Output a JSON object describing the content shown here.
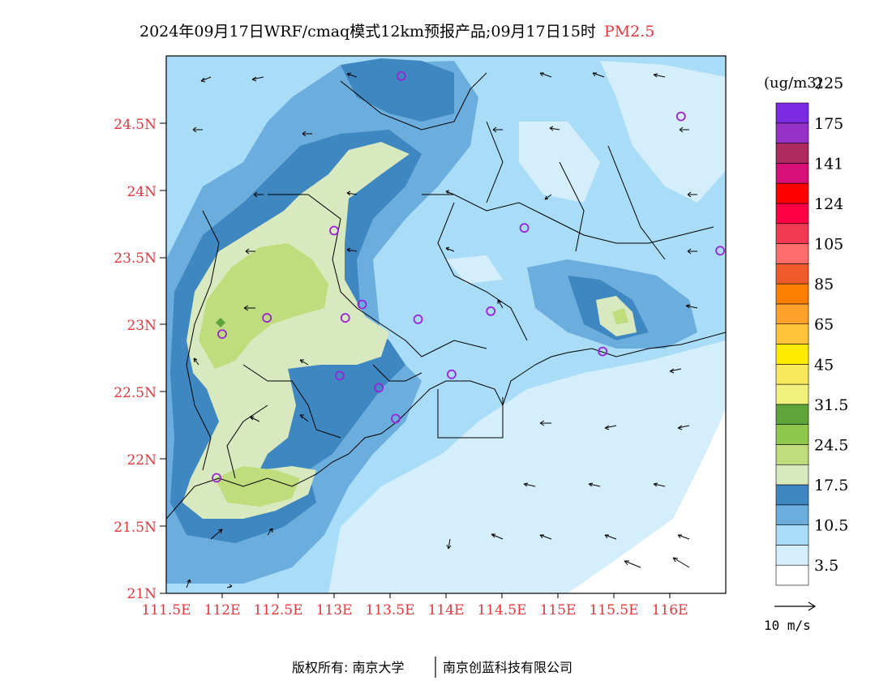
{
  "title": {
    "main": "2024年09月17日WRF/cmaq模式12km预报产品;09月17日15时",
    "pollutant": "PM2.5"
  },
  "map": {
    "lon_range": [
      111.5,
      116.5
    ],
    "lat_range": [
      21,
      25
    ],
    "x_ticks": [
      "111.5E",
      "112E",
      "112.5E",
      "113E",
      "113.5E",
      "114E",
      "114.5E",
      "115E",
      "115.5E",
      "116E"
    ],
    "y_ticks": [
      "21N",
      "21.5N",
      "22N",
      "22.5N",
      "23N",
      "23.5N",
      "24N",
      "24.5N"
    ],
    "stations": [
      {
        "lon": 113.6,
        "lat": 24.85
      },
      {
        "lon": 116.1,
        "lat": 24.55
      },
      {
        "lon": 113.0,
        "lat": 23.7
      },
      {
        "lon": 114.7,
        "lat": 23.72
      },
      {
        "lon": 116.45,
        "lat": 23.55
      },
      {
        "lon": 113.25,
        "lat": 23.15
      },
      {
        "lon": 112.4,
        "lat": 23.05
      },
      {
        "lon": 113.1,
        "lat": 23.05
      },
      {
        "lon": 113.75,
        "lat": 23.04
      },
      {
        "lon": 114.4,
        "lat": 23.1
      },
      {
        "lon": 112.0,
        "lat": 22.93
      },
      {
        "lon": 115.4,
        "lat": 22.8
      },
      {
        "lon": 113.05,
        "lat": 22.62
      },
      {
        "lon": 114.05,
        "lat": 22.63
      },
      {
        "lon": 113.4,
        "lat": 22.53
      },
      {
        "lon": 113.55,
        "lat": 22.3
      },
      {
        "lon": 111.95,
        "lat": 21.86
      }
    ]
  },
  "colorbar": {
    "unit": "(ug/m3)",
    "colors": [
      "#ffffff",
      "#d5eefb",
      "#a9dcf6",
      "#6baedd",
      "#3f87c1",
      "#d9e9bf",
      "#bfdd7d",
      "#8ec74b",
      "#5fa43a",
      "#f1f27d",
      "#f8e95a",
      "#ffea00",
      "#ffc43a",
      "#ffa12a",
      "#ff8000",
      "#ef5a2a",
      "#ff6c6c",
      "#f23a55",
      "#ff0044",
      "#ff0000",
      "#d70f77",
      "#ad2a5c",
      "#9732c8",
      "#7c2be2"
    ],
    "labels": [
      "3.5",
      "10.5",
      "17.5",
      "24.5",
      "31.5",
      "45",
      "65",
      "85",
      "105",
      "124",
      "141",
      "175",
      "225"
    ]
  },
  "wind_reference": {
    "label": "10 m/s"
  },
  "footer": {
    "left": "版权所有: 南京大学",
    "right": "南京创蓝科技有限公司"
  },
  "colors": {
    "tick_red": "#e8343a",
    "station_purple": "#9b22d6"
  }
}
